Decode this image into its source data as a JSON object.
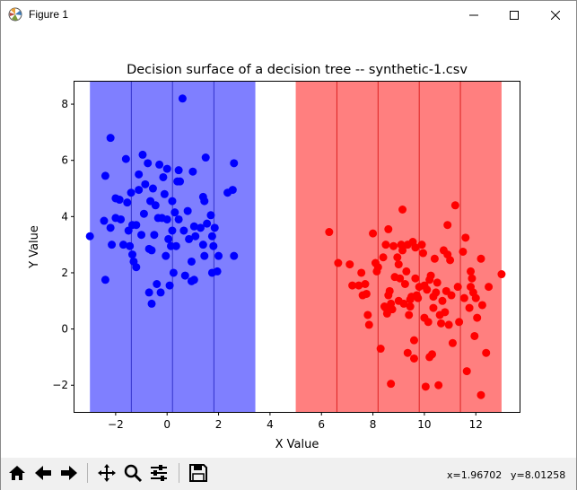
{
  "window": {
    "title": "Figure 1",
    "controls": [
      "minimize",
      "maximize",
      "close"
    ]
  },
  "toolbar": {
    "buttons": [
      "home-icon",
      "back-icon",
      "forward-icon",
      "pan-icon",
      "zoom-icon",
      "configure-subplots-icon",
      "save-icon"
    ],
    "coord_x": "x=1.96702",
    "coord_y": "y=8.01258"
  },
  "chart_data": {
    "type": "scatter",
    "title": "Decision surface of a decision tree -- synthetic-1.csv",
    "xlabel": "X Value",
    "ylabel": "Y Value",
    "xlim": [
      -3.6,
      13.7
    ],
    "ylim": [
      -2.95,
      8.8
    ],
    "xticks": [
      -2,
      0,
      2,
      4,
      6,
      8,
      10,
      12
    ],
    "yticks": [
      -2,
      0,
      2,
      4,
      6,
      8
    ],
    "grid": false,
    "regions": [
      {
        "x0": -3.0,
        "x1": 3.43,
        "color": "#0000ff",
        "opacity": 0.5
      },
      {
        "x0": 5.0,
        "x1": 13.0,
        "color": "#ff0000",
        "opacity": 0.5
      }
    ],
    "split_lines": [
      -1.39,
      0.21,
      1.82,
      6.6,
      8.2,
      9.8,
      11.4
    ],
    "series": [
      {
        "color": "#0000ff",
        "points": [
          [
            -3.0,
            3.3
          ],
          [
            -2.4,
            1.75
          ],
          [
            -2.2,
            6.8
          ],
          [
            -2.4,
            5.45
          ],
          [
            -2.45,
            3.85
          ],
          [
            -2.2,
            3.6
          ],
          [
            -2.15,
            3.0
          ],
          [
            -2.0,
            3.95
          ],
          [
            -2.0,
            4.65
          ],
          [
            -1.85,
            4.6
          ],
          [
            -1.8,
            3.9
          ],
          [
            -1.7,
            3.0
          ],
          [
            -1.6,
            6.05
          ],
          [
            -1.55,
            4.5
          ],
          [
            -1.5,
            3.5
          ],
          [
            -1.45,
            2.95
          ],
          [
            -1.4,
            4.85
          ],
          [
            -1.35,
            3.7
          ],
          [
            -1.35,
            2.65
          ],
          [
            -1.3,
            2.4
          ],
          [
            -1.2,
            3.7
          ],
          [
            -1.2,
            2.2
          ],
          [
            -1.1,
            5.5
          ],
          [
            -1.1,
            4.95
          ],
          [
            -1.0,
            3.35
          ],
          [
            -0.95,
            6.2
          ],
          [
            -0.9,
            4.1
          ],
          [
            -0.85,
            5.15
          ],
          [
            -0.75,
            5.9
          ],
          [
            -0.7,
            2.85
          ],
          [
            -0.7,
            1.3
          ],
          [
            -0.65,
            4.55
          ],
          [
            -0.6,
            2.8
          ],
          [
            -0.6,
            0.9
          ],
          [
            -0.55,
            5.0
          ],
          [
            -0.5,
            3.35
          ],
          [
            -0.45,
            4.4
          ],
          [
            -0.4,
            1.6
          ],
          [
            -0.35,
            3.95
          ],
          [
            -0.3,
            5.85
          ],
          [
            -0.25,
            1.3
          ],
          [
            -0.2,
            3.95
          ],
          [
            -0.15,
            5.4
          ],
          [
            -0.1,
            4.8
          ],
          [
            -0.05,
            2.6
          ],
          [
            0.0,
            3.9
          ],
          [
            0.0,
            5.7
          ],
          [
            0.05,
            3.2
          ],
          [
            0.1,
            1.55
          ],
          [
            0.15,
            2.95
          ],
          [
            0.2,
            4.55
          ],
          [
            0.2,
            3.5
          ],
          [
            0.25,
            2.0
          ],
          [
            0.3,
            4.15
          ],
          [
            0.35,
            2.95
          ],
          [
            0.4,
            5.25
          ],
          [
            0.45,
            5.65
          ],
          [
            0.45,
            3.9
          ],
          [
            0.5,
            5.25
          ],
          [
            0.6,
            8.2
          ],
          [
            0.65,
            3.5
          ],
          [
            0.7,
            1.9
          ],
          [
            0.8,
            4.2
          ],
          [
            0.85,
            3.2
          ],
          [
            0.95,
            2.4
          ],
          [
            0.95,
            1.7
          ],
          [
            1.0,
            5.6
          ],
          [
            1.05,
            3.65
          ],
          [
            1.05,
            1.75
          ],
          [
            1.1,
            3.3
          ],
          [
            1.3,
            3.6
          ],
          [
            1.4,
            4.7
          ],
          [
            1.4,
            3.0
          ],
          [
            1.45,
            4.55
          ],
          [
            1.45,
            2.6
          ],
          [
            1.5,
            6.1
          ],
          [
            1.55,
            3.75
          ],
          [
            1.7,
            4.05
          ],
          [
            1.75,
            2.0
          ],
          [
            1.75,
            3.3
          ],
          [
            1.8,
            2.95
          ],
          [
            1.85,
            3.6
          ],
          [
            1.95,
            2.05
          ],
          [
            2.0,
            2.6
          ],
          [
            2.35,
            4.85
          ],
          [
            2.6,
            5.9
          ],
          [
            2.55,
            4.95
          ],
          [
            2.6,
            2.6
          ]
        ]
      },
      {
        "color": "#ff0000",
        "points": [
          [
            6.3,
            3.45
          ],
          [
            6.65,
            2.35
          ],
          [
            7.1,
            2.3
          ],
          [
            7.2,
            1.55
          ],
          [
            7.45,
            1.55
          ],
          [
            7.55,
            2.0
          ],
          [
            7.6,
            1.2
          ],
          [
            7.7,
            1.6
          ],
          [
            7.75,
            1.25
          ],
          [
            7.8,
            0.5
          ],
          [
            7.85,
            0.15
          ],
          [
            8.0,
            3.4
          ],
          [
            8.1,
            2.35
          ],
          [
            8.15,
            2.05
          ],
          [
            8.2,
            2.2
          ],
          [
            8.3,
            -0.7
          ],
          [
            8.4,
            2.55
          ],
          [
            8.45,
            0.8
          ],
          [
            8.5,
            3.0
          ],
          [
            8.5,
            0.75
          ],
          [
            8.55,
            0.55
          ],
          [
            8.6,
            3.55
          ],
          [
            8.6,
            1.2
          ],
          [
            8.65,
            1.35
          ],
          [
            8.7,
            0.9
          ],
          [
            8.7,
            -1.95
          ],
          [
            8.75,
            0.7
          ],
          [
            8.8,
            2.95
          ],
          [
            8.85,
            1.85
          ],
          [
            8.95,
            2.55
          ],
          [
            9.0,
            2.3
          ],
          [
            9.0,
            1.0
          ],
          [
            9.05,
            1.8
          ],
          [
            9.1,
            3.0
          ],
          [
            9.15,
            2.8
          ],
          [
            9.15,
            4.25
          ],
          [
            9.2,
            0.9
          ],
          [
            9.25,
            1.6
          ],
          [
            9.3,
            2.05
          ],
          [
            9.35,
            3.0
          ],
          [
            9.35,
            -0.85
          ],
          [
            9.4,
            0.5
          ],
          [
            9.45,
            1.05
          ],
          [
            9.45,
            0.8
          ],
          [
            9.5,
            1.15
          ],
          [
            9.55,
            3.1
          ],
          [
            9.6,
            -1.05
          ],
          [
            9.6,
            -0.4
          ],
          [
            9.65,
            2.9
          ],
          [
            9.65,
            1.8
          ],
          [
            9.7,
            1.2
          ],
          [
            9.75,
            1.1
          ],
          [
            9.8,
            1.5
          ],
          [
            9.9,
            3.0
          ],
          [
            9.95,
            2.7
          ],
          [
            10.0,
            1.55
          ],
          [
            10.0,
            0.4
          ],
          [
            10.05,
            -2.05
          ],
          [
            10.1,
            1.4
          ],
          [
            10.15,
            0.25
          ],
          [
            10.2,
            1.75
          ],
          [
            10.2,
            -1.0
          ],
          [
            10.25,
            1.9
          ],
          [
            10.3,
            -0.9
          ],
          [
            10.35,
            0.75
          ],
          [
            10.35,
            1.15
          ],
          [
            10.4,
            2.5
          ],
          [
            10.45,
            1.3
          ],
          [
            10.5,
            1.65
          ],
          [
            10.55,
            -2.0
          ],
          [
            10.6,
            0.5
          ],
          [
            10.65,
            0.2
          ],
          [
            10.7,
            1.0
          ],
          [
            10.75,
            2.8
          ],
          [
            10.8,
            0.6
          ],
          [
            10.85,
            1.35
          ],
          [
            10.9,
            3.7
          ],
          [
            10.9,
            2.65
          ],
          [
            10.95,
            0.15
          ],
          [
            11.0,
            2.45
          ],
          [
            11.05,
            1.2
          ],
          [
            11.1,
            -0.5
          ],
          [
            11.2,
            4.4
          ],
          [
            11.3,
            1.5
          ],
          [
            11.35,
            0.25
          ],
          [
            11.5,
            2.75
          ],
          [
            11.55,
            1.1
          ],
          [
            11.6,
            3.25
          ],
          [
            11.65,
            -1.5
          ],
          [
            11.75,
            0.75
          ],
          [
            11.8,
            1.5
          ],
          [
            11.8,
            2.05
          ],
          [
            11.85,
            1.8
          ],
          [
            11.9,
            1.3
          ],
          [
            11.95,
            -0.25
          ],
          [
            12.0,
            1.1
          ],
          [
            12.05,
            0.4
          ],
          [
            12.2,
            2.5
          ],
          [
            12.2,
            -2.35
          ],
          [
            12.25,
            0.85
          ],
          [
            12.4,
            -0.85
          ],
          [
            12.5,
            1.5
          ],
          [
            13.0,
            1.95
          ]
        ]
      }
    ]
  }
}
